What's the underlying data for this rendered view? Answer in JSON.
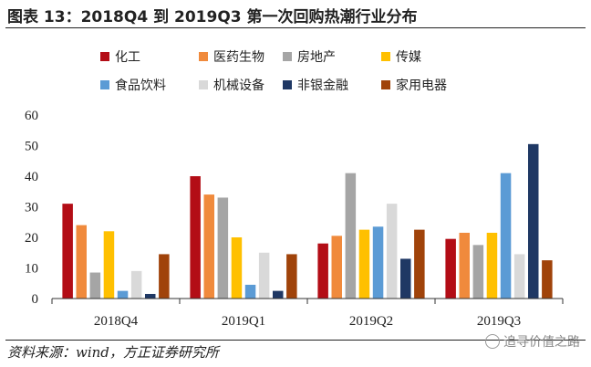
{
  "header": {
    "title": "图表 13：2018Q4 到 2019Q3 第一次回购热潮行业分布"
  },
  "footer": {
    "source": "资料来源：wind，方正证券研究所",
    "watermark": "追寻价值之路"
  },
  "chart_data": {
    "type": "bar",
    "categories": [
      "2018Q4",
      "2019Q1",
      "2019Q2",
      "2019Q3"
    ],
    "ylim": [
      0,
      60
    ],
    "yticks": [
      0,
      10,
      20,
      30,
      40,
      50,
      60
    ],
    "grid": false,
    "legend_position": "top",
    "series": [
      {
        "name": "化工",
        "color": "#B30D16",
        "values": [
          31,
          40,
          18,
          19.5
        ]
      },
      {
        "name": "医药生物",
        "color": "#F08A3C",
        "values": [
          24,
          34,
          20.5,
          21.5
        ]
      },
      {
        "name": "房地产",
        "color": "#A5A5A5",
        "values": [
          8.5,
          33,
          41,
          17.5
        ]
      },
      {
        "name": "传媒",
        "color": "#FFC000",
        "values": [
          22,
          20,
          22.5,
          21.5
        ]
      },
      {
        "name": "食品饮料",
        "color": "#5B9BD5",
        "values": [
          2.5,
          4.5,
          23.5,
          41
        ]
      },
      {
        "name": "机械设备",
        "color": "#D9D9D9",
        "values": [
          9,
          15,
          31,
          14.5
        ]
      },
      {
        "name": "非银金融",
        "color": "#1F3864",
        "values": [
          1.5,
          2.5,
          13,
          50.5
        ]
      },
      {
        "name": "家用电器",
        "color": "#A0430A",
        "values": [
          14.5,
          14.5,
          22.5,
          12.5
        ]
      }
    ]
  }
}
